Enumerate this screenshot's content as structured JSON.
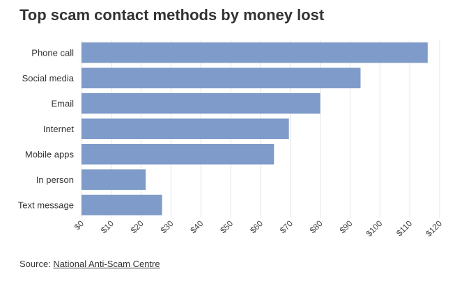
{
  "chart_data": {
    "type": "bar",
    "orientation": "horizontal",
    "title": "Top scam contact methods by money lost",
    "categories": [
      "Phone call",
      "Social media",
      "Email",
      "Internet",
      "Mobile apps",
      "In person",
      "Text message"
    ],
    "values": [
      116,
      93.5,
      80,
      69.5,
      64.5,
      21.5,
      27
    ],
    "xlim": [
      0,
      120
    ],
    "x_ticks": [
      "$0",
      "$10",
      "$20",
      "$30",
      "$40",
      "$50",
      "$60",
      "$70",
      "$80",
      "$90",
      "$100",
      "$110",
      "$120"
    ],
    "bar_color": "#7f9bc9",
    "grid": "vertical",
    "xlabel": "",
    "ylabel": ""
  },
  "source": {
    "prefix": "Source: ",
    "link_text": "National Anti-Scam Centre"
  }
}
